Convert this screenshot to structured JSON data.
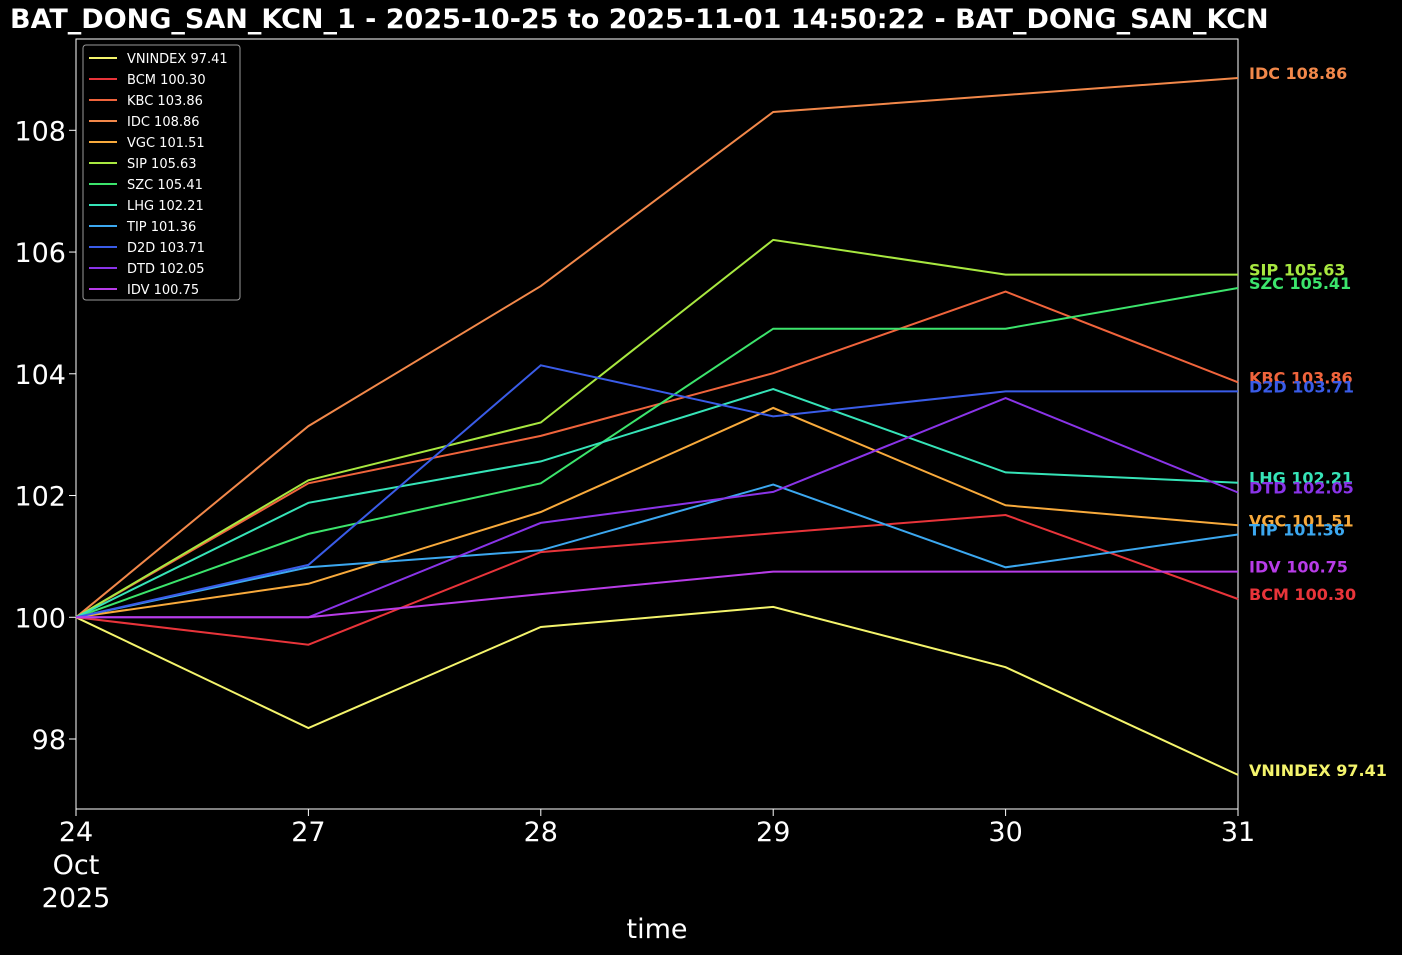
{
  "title": "BAT_DONG_SAN_KCN_1 - 2025-10-25 to 2025-11-01 14:50:22 - BAT_DONG_SAN_KCN",
  "chart_data": {
    "type": "line",
    "title": "BAT_DONG_SAN_KCN_1 - 2025-10-25 to 2025-11-01 14:50:22 - BAT_DONG_SAN_KCN",
    "xlabel": "time",
    "ylabel": "",
    "categories": [
      "24\nOct\n2025",
      "27",
      "28",
      "29",
      "30",
      "31"
    ],
    "ylim": [
      96.85,
      109.5
    ],
    "yticks": [
      98,
      100,
      102,
      104,
      106,
      108
    ],
    "grid": false,
    "legend_position": "top-left",
    "series": [
      {
        "name": "VNINDEX 97.41",
        "color": "#f4f46c",
        "values": [
          100,
          98.18,
          99.84,
          100.17,
          99.18,
          97.41
        ]
      },
      {
        "name": "BCM 100.30",
        "color": "#e8343a",
        "values": [
          100,
          99.55,
          101.07,
          101.38,
          101.68,
          100.3
        ]
      },
      {
        "name": "KBC 103.86",
        "color": "#f0643c",
        "values": [
          100,
          102.2,
          102.98,
          104.01,
          105.35,
          103.86
        ]
      },
      {
        "name": "IDC 108.86",
        "color": "#f2884a",
        "values": [
          100,
          103.14,
          105.44,
          108.3,
          108.58,
          108.86
        ]
      },
      {
        "name": "VGC 101.51",
        "color": "#f8aa3c",
        "values": [
          100,
          100.55,
          101.73,
          103.44,
          101.84,
          101.51
        ]
      },
      {
        "name": "SIP 105.63",
        "color": "#a8e840",
        "values": [
          100,
          102.25,
          103.2,
          106.2,
          105.63,
          105.63
        ]
      },
      {
        "name": "SZC 105.41",
        "color": "#3ce46c",
        "values": [
          100,
          101.37,
          102.2,
          104.74,
          104.74,
          105.41
        ]
      },
      {
        "name": "LHG 102.21",
        "color": "#36e4b8",
        "values": [
          100,
          101.88,
          102.56,
          103.75,
          102.38,
          102.21
        ]
      },
      {
        "name": "TIP 101.36",
        "color": "#3ca8f0",
        "values": [
          100,
          100.82,
          101.1,
          102.18,
          100.82,
          101.36
        ]
      },
      {
        "name": "D2D 103.71",
        "color": "#3a5ce8",
        "values": [
          100,
          100.86,
          104.14,
          103.3,
          103.71,
          103.71
        ]
      },
      {
        "name": "DTD 102.05",
        "color": "#8a34e8",
        "values": [
          100,
          100,
          101.55,
          102.06,
          103.6,
          102.05
        ]
      },
      {
        "name": "IDV 100.75",
        "color": "#b83ce8",
        "values": [
          100,
          100,
          100.38,
          100.75,
          100.75,
          100.75
        ]
      }
    ]
  }
}
